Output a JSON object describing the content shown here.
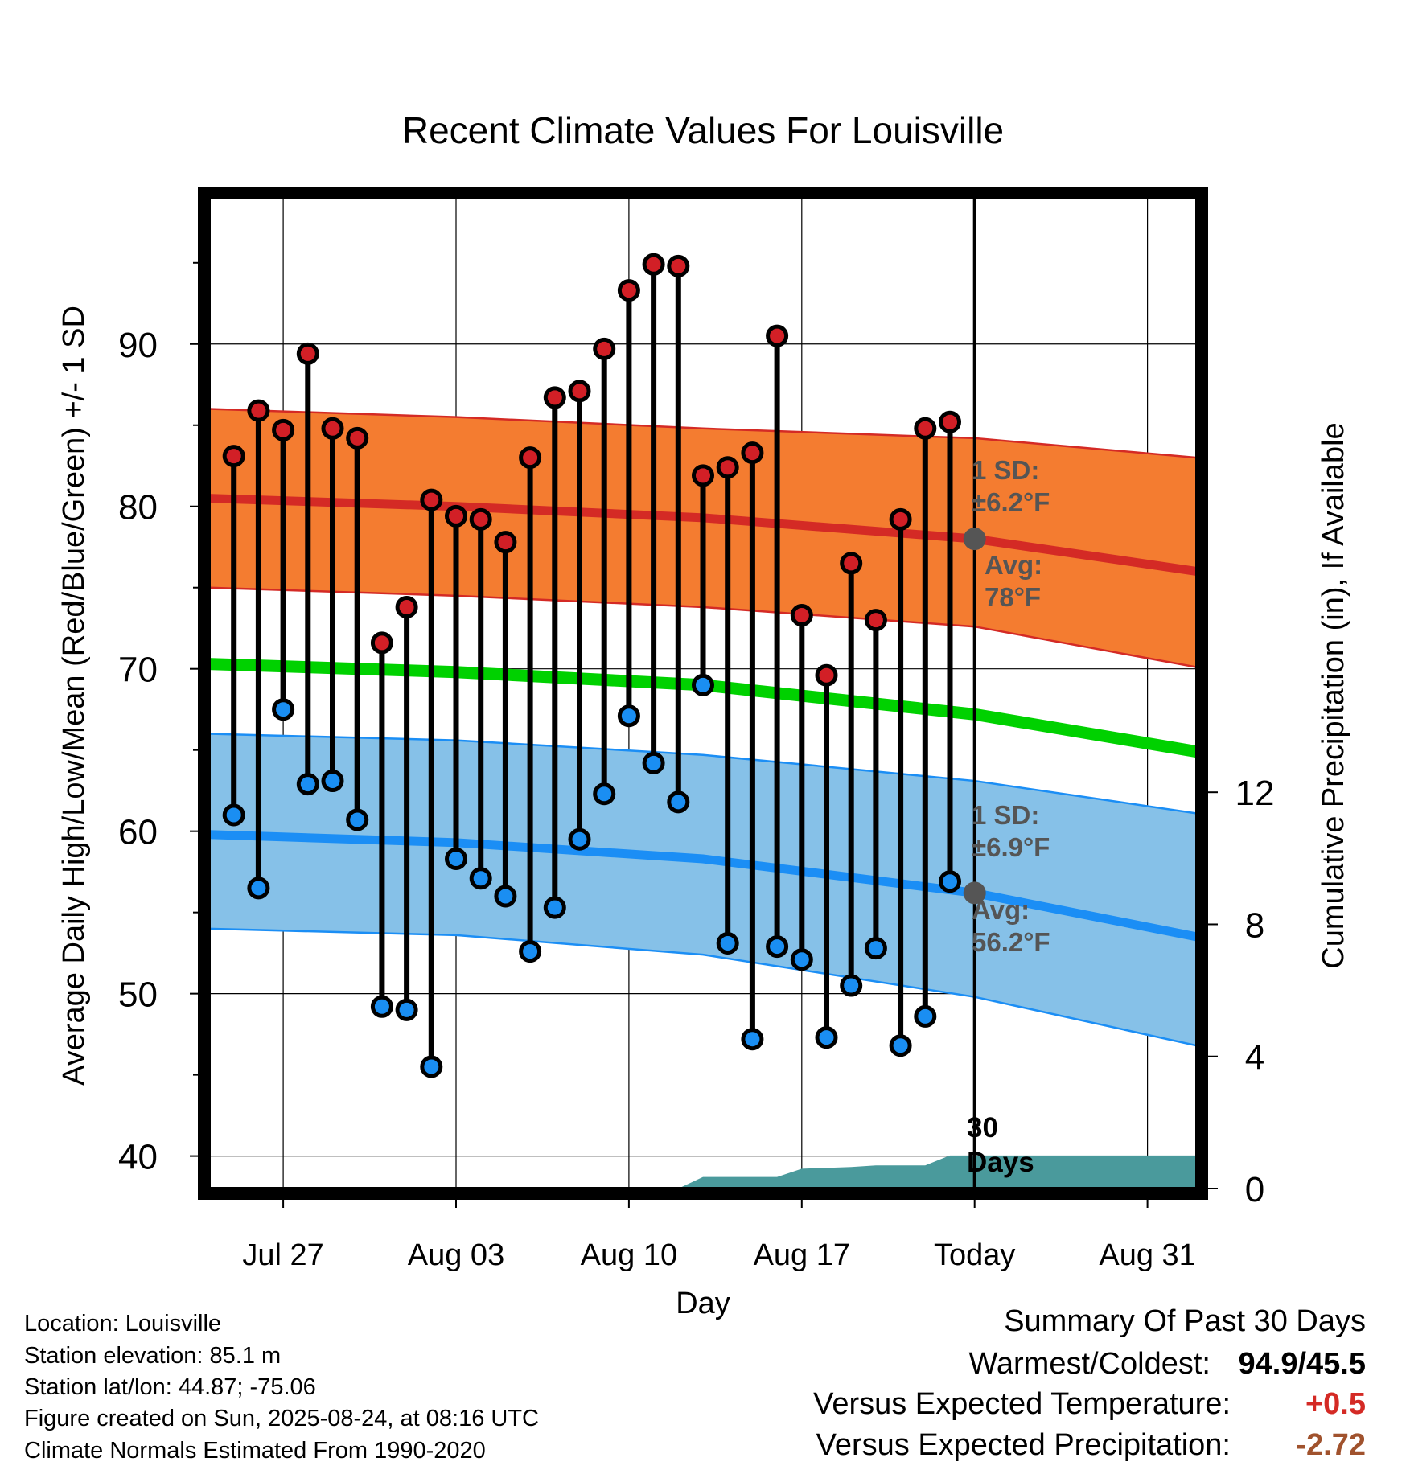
{
  "chart_data": {
    "type": "line",
    "title": "Recent Climate Values For Louisville",
    "xlabel": "Day",
    "ylabel_left": "Average Daily High/Low/Mean (Red/Blue/Green) +/- 1 SD",
    "ylabel_right": "Cumulative Precipitation (in), If Available",
    "x_range": [
      "2025-07-24",
      "2025-09-02"
    ],
    "y_left_range": [
      38,
      99
    ],
    "y_right_range": [
      0,
      30
    ],
    "x_ticks": [
      {
        "date": "2025-07-27",
        "label": "Jul 27"
      },
      {
        "date": "2025-08-03",
        "label": "Aug 03"
      },
      {
        "date": "2025-08-10",
        "label": "Aug 10"
      },
      {
        "date": "2025-08-17",
        "label": "Aug 17"
      },
      {
        "date": "2025-08-24",
        "label": "Today"
      },
      {
        "date": "2025-08-31",
        "label": "Aug 31"
      }
    ],
    "y_left_ticks": [
      40,
      50,
      60,
      70,
      80,
      90
    ],
    "y_right_ticks": [
      0,
      4,
      8,
      12
    ],
    "grid": true,
    "today": "2025-08-24",
    "daily": [
      {
        "date": "2025-07-25",
        "high": 83.1,
        "low": 61.0
      },
      {
        "date": "2025-07-26",
        "high": 85.9,
        "low": 56.5
      },
      {
        "date": "2025-07-27",
        "high": 84.7,
        "low": 67.5
      },
      {
        "date": "2025-07-28",
        "high": 89.4,
        "low": 62.9
      },
      {
        "date": "2025-07-29",
        "high": 84.8,
        "low": 63.1
      },
      {
        "date": "2025-07-30",
        "high": 84.2,
        "low": 60.7
      },
      {
        "date": "2025-07-31",
        "high": 71.6,
        "low": 49.2
      },
      {
        "date": "2025-08-01",
        "high": 73.8,
        "low": 49.0
      },
      {
        "date": "2025-08-02",
        "high": 80.4,
        "low": 45.5
      },
      {
        "date": "2025-08-03",
        "high": 79.4,
        "low": 58.3
      },
      {
        "date": "2025-08-04",
        "high": 79.2,
        "low": 57.1
      },
      {
        "date": "2025-08-05",
        "high": 77.8,
        "low": 56.0
      },
      {
        "date": "2025-08-06",
        "high": 83.0,
        "low": 52.6
      },
      {
        "date": "2025-08-07",
        "high": 86.7,
        "low": 55.3
      },
      {
        "date": "2025-08-08",
        "high": 87.1,
        "low": 59.5
      },
      {
        "date": "2025-08-09",
        "high": 89.7,
        "low": 62.3
      },
      {
        "date": "2025-08-10",
        "high": 93.3,
        "low": 67.1
      },
      {
        "date": "2025-08-11",
        "high": 94.9,
        "low": 64.2
      },
      {
        "date": "2025-08-12",
        "high": 94.8,
        "low": 61.8
      },
      {
        "date": "2025-08-13",
        "high": 81.9,
        "low": 69.0
      },
      {
        "date": "2025-08-14",
        "high": 82.4,
        "low": 53.1
      },
      {
        "date": "2025-08-15",
        "high": 83.3,
        "low": 47.2
      },
      {
        "date": "2025-08-16",
        "high": 90.5,
        "low": 52.9
      },
      {
        "date": "2025-08-17",
        "high": 73.3,
        "low": 52.1
      },
      {
        "date": "2025-08-18",
        "high": 69.6,
        "low": 47.3
      },
      {
        "date": "2025-08-19",
        "high": 76.5,
        "low": 50.5
      },
      {
        "date": "2025-08-20",
        "high": 73.0,
        "low": 52.8
      },
      {
        "date": "2025-08-21",
        "high": 79.2,
        "low": 46.8
      },
      {
        "date": "2025-08-22",
        "high": 84.8,
        "low": 48.6
      },
      {
        "date": "2025-08-23",
        "high": 85.2,
        "low": 56.9
      }
    ],
    "normals": {
      "dates": [
        "2025-07-24",
        "2025-08-03",
        "2025-08-13",
        "2025-08-24",
        "2025-09-02"
      ],
      "high_avg": [
        80.5,
        80.0,
        79.3,
        78.0,
        76.0
      ],
      "high_sd_upper": [
        86.0,
        85.5,
        84.8,
        84.2,
        83.0
      ],
      "high_sd_lower": [
        75.0,
        74.5,
        73.8,
        72.6,
        70.1
      ],
      "low_avg": [
        59.8,
        59.3,
        58.3,
        56.2,
        53.5
      ],
      "low_sd_upper": [
        66.0,
        65.6,
        64.7,
        63.1,
        61.1
      ],
      "low_sd_lower": [
        54.0,
        53.6,
        52.4,
        49.8,
        46.8
      ],
      "mean_avg": [
        70.3,
        69.8,
        69.0,
        67.2,
        64.9
      ]
    },
    "precip": [
      {
        "date": "2025-08-12",
        "value": 0.0
      },
      {
        "date": "2025-08-13",
        "value": 0.35
      },
      {
        "date": "2025-08-16",
        "value": 0.35
      },
      {
        "date": "2025-08-17",
        "value": 0.6
      },
      {
        "date": "2025-08-19",
        "value": 0.65
      },
      {
        "date": "2025-08-20",
        "value": 0.7
      },
      {
        "date": "2025-08-22",
        "value": 0.7
      },
      {
        "date": "2025-08-23",
        "value": 1.0
      },
      {
        "date": "2025-09-02",
        "value": 1.0
      }
    ],
    "annotations": {
      "high_sd_label": "1 SD:",
      "high_sd_value": "±6.2°F",
      "high_avg_label": "Avg:",
      "high_avg_value": "78°F",
      "low_sd_label": "1 SD:",
      "low_sd_value": "±6.9°F",
      "low_avg_label": "Avg:",
      "low_avg_value": "56.2°F",
      "window_value": "30",
      "window_unit": "Days"
    },
    "colors": {
      "high_band": "#f47c30",
      "high_line": "#d42a25",
      "low_band": "#86c1e8",
      "low_line": "#1b8ef5",
      "mean_line": "#00d100",
      "precip": "#4a9a9c",
      "high_dot": "#d21f26",
      "low_dot": "#1a8ef2",
      "avg_marker": "#555555",
      "annotation_text": "#555555",
      "temp_anomaly": "#d42a25",
      "precip_anomaly": "#a0522d"
    }
  },
  "info": {
    "location": "Location: Louisville",
    "elevation": "Station elevation: 85.1 m",
    "latlon": "Station lat/lon: 44.87; -75.06",
    "created": "Figure created on Sun, 2025-08-24, at 08:16 UTC",
    "normals": "Climate Normals Estimated From 1990-2020"
  },
  "summary": {
    "title": "Summary Of Past 30 Days",
    "warm_cold_label": "Warmest/Coldest:",
    "warm_cold_value": "94.9/45.5",
    "temp_label": "Versus Expected Temperature:",
    "temp_value": "+0.5",
    "precip_label": "Versus Expected Precipitation:",
    "precip_value": "-2.72"
  }
}
